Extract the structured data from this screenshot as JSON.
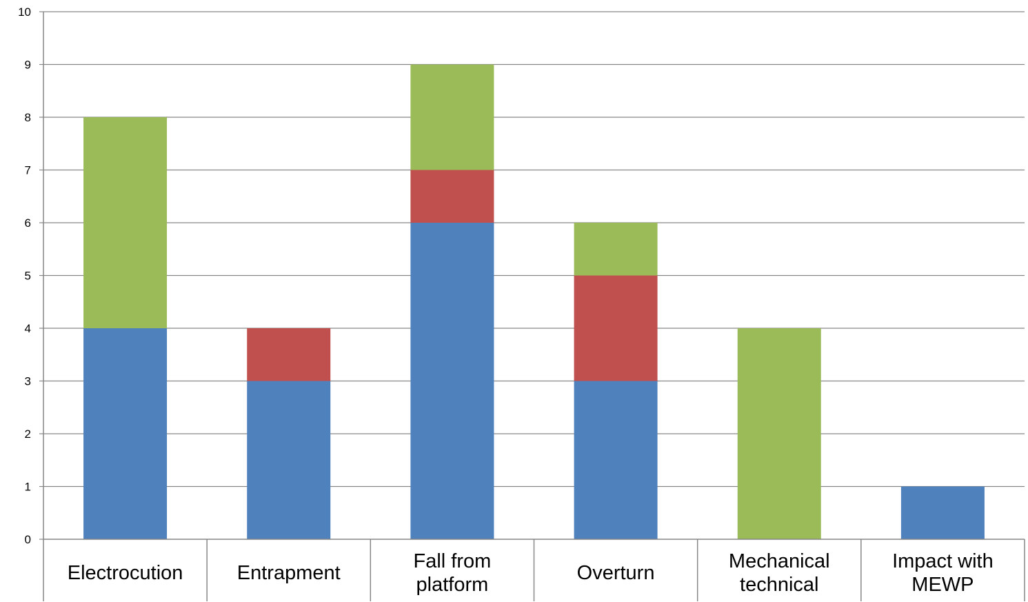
{
  "chart_data": {
    "type": "bar",
    "stacked": true,
    "categories": [
      [
        "Electrocution"
      ],
      [
        "Entrapment"
      ],
      [
        "Fall from",
        "platform"
      ],
      [
        "Overturn"
      ],
      [
        "Mechanical",
        "technical"
      ],
      [
        "Impact with",
        "MEWP"
      ]
    ],
    "series": [
      {
        "color": "#4f81bd",
        "values": [
          4,
          3,
          6,
          3,
          0,
          1
        ]
      },
      {
        "color": "#c0504d",
        "values": [
          0,
          1,
          1,
          2,
          0,
          0
        ]
      },
      {
        "color": "#9bbb59",
        "values": [
          4,
          0,
          2,
          1,
          4,
          0
        ]
      }
    ],
    "title": "",
    "xlabel": "",
    "ylabel": "",
    "ylim": [
      0,
      10
    ],
    "yticks": [
      0,
      1,
      2,
      3,
      4,
      5,
      6,
      7,
      8,
      9,
      10
    ],
    "grid": true,
    "legend": "none"
  }
}
